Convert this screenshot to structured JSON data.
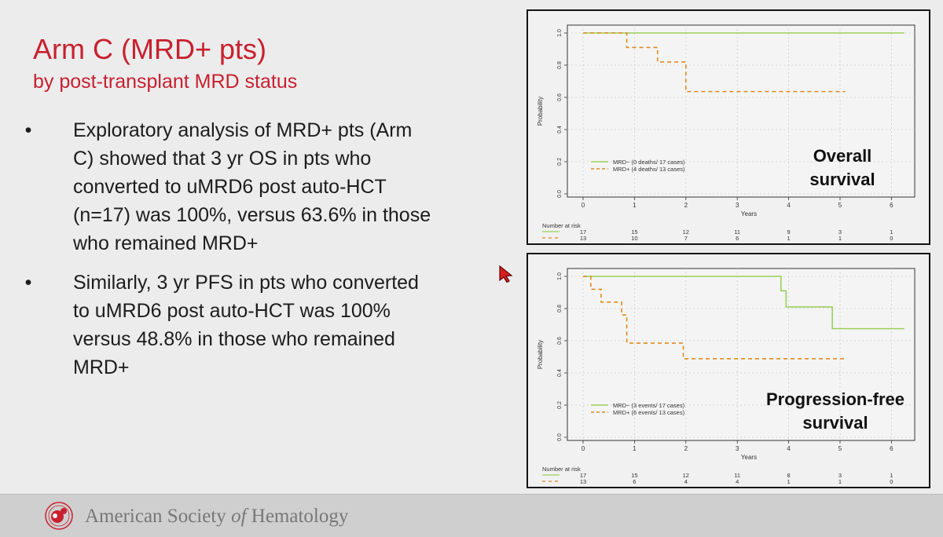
{
  "slide": {
    "title": "Arm C (MRD+ pts)",
    "subtitle": "by post-transplant MRD status",
    "bullets": [
      {
        "marker": "•",
        "text": "Exploratory analysis of MRD+ pts (Arm C) showed that 3 yr OS in pts who converted to uMRD6 post auto-HCT (n=17) was 100%, versus 63.6% in those who remained MRD+"
      },
      {
        "marker": "•",
        "text": "Similarly, 3 yr PFS in pts who converted to uMRD6 post auto-HCT was 100% versus 48.8% in those who remained MRD+"
      }
    ]
  },
  "footer": {
    "org_prefix": "American Society ",
    "org_of": "of",
    "org_suffix": " Hematology"
  },
  "colors": {
    "title_red": "#c8202f",
    "mrd_neg_green": "#9bcf5a",
    "mrd_pos_orange": "#e08a1e"
  },
  "chart_data": [
    {
      "type": "line",
      "step": true,
      "caption": [
        "Overall",
        "survival"
      ],
      "ylabel": "Probability",
      "xlabel": "Years",
      "xlim": [
        0,
        6.3
      ],
      "ylim": [
        0,
        1.0
      ],
      "xticks": [
        0,
        1,
        2,
        3,
        4,
        5,
        6
      ],
      "yticks": [
        "0.0",
        "0.2",
        "0.4",
        "0.6",
        "0.8",
        "1.0"
      ],
      "grid": true,
      "legend_position": "bottom-left",
      "series": [
        {
          "name": "MRD−  (0 deaths/ 17 cases)",
          "color": "#9bcf5a",
          "dash": false,
          "steps": [
            [
              0,
              1.0
            ],
            [
              6.25,
              1.0
            ]
          ]
        },
        {
          "name": "MRD+  (4 deaths/ 13 cases)",
          "color": "#e08a1e",
          "dash": true,
          "steps": [
            [
              0,
              1.0
            ],
            [
              0.85,
              0.91
            ],
            [
              1.45,
              0.82
            ],
            [
              2.0,
              0.636
            ],
            [
              5.1,
              0.636
            ]
          ]
        }
      ],
      "risk_table": {
        "title": "Number at risk",
        "times": [
          0,
          1,
          2,
          3,
          4,
          5,
          6
        ],
        "rows": [
          {
            "color": "#9bcf5a",
            "dash": false,
            "values": [
              "17",
              "15",
              "12",
              "11",
              "9",
              "3",
              "1"
            ]
          },
          {
            "color": "#e08a1e",
            "dash": true,
            "values": [
              "13",
              "10",
              "7",
              "6",
              "1",
              "1",
              "0"
            ]
          }
        ]
      }
    },
    {
      "type": "line",
      "step": true,
      "caption": [
        "Progression-free",
        "survival"
      ],
      "ylabel": "Probability",
      "xlabel": "Years",
      "xlim": [
        0,
        6.3
      ],
      "ylim": [
        0,
        1.0
      ],
      "xticks": [
        0,
        1,
        2,
        3,
        4,
        5,
        6
      ],
      "yticks": [
        "0.0",
        "0.2",
        "0.4",
        "0.6",
        "0.8",
        "1.0"
      ],
      "grid": true,
      "legend_position": "bottom-left",
      "series": [
        {
          "name": "MRD−  (3 events/ 17 cases)",
          "color": "#9bcf5a",
          "dash": false,
          "steps": [
            [
              0,
              1.0
            ],
            [
              3.85,
              0.91
            ],
            [
              3.95,
              0.81
            ],
            [
              4.85,
              0.675
            ],
            [
              6.25,
              0.675
            ]
          ]
        },
        {
          "name": "MRD+  (6 events/ 13 cases)",
          "color": "#e08a1e",
          "dash": true,
          "steps": [
            [
              0,
              1.0
            ],
            [
              0.15,
              0.92
            ],
            [
              0.35,
              0.84
            ],
            [
              0.75,
              0.76
            ],
            [
              0.85,
              0.585
            ],
            [
              1.95,
              0.488
            ],
            [
              5.1,
              0.488
            ]
          ]
        }
      ],
      "risk_table": {
        "title": "Number at risk",
        "times": [
          0,
          1,
          2,
          3,
          4,
          5,
          6
        ],
        "rows": [
          {
            "color": "#9bcf5a",
            "dash": false,
            "values": [
              "17",
              "15",
              "12",
              "11",
              "8",
              "3",
              "1"
            ]
          },
          {
            "color": "#e08a1e",
            "dash": true,
            "values": [
              "13",
              "6",
              "4",
              "4",
              "1",
              "1",
              "0"
            ]
          }
        ]
      }
    }
  ]
}
